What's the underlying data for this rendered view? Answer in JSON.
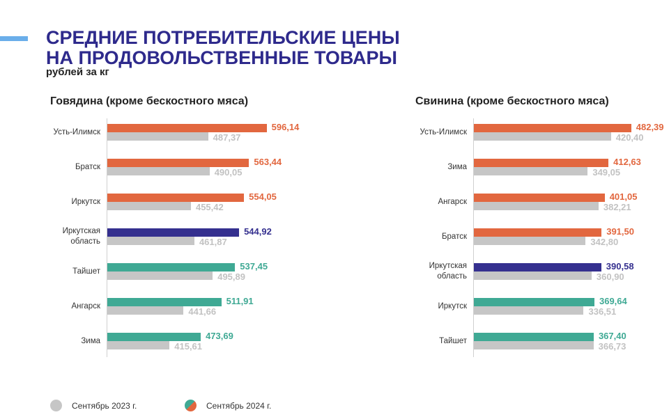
{
  "header": {
    "title_line1": "СРЕДНИЕ ПОТРЕБИТЕЛЬСКИЕ ЦЕНЫ",
    "title_line2": "НА ПРОДОВОЛЬСТВЕННЫЕ ТОВАРЫ",
    "units": "рублей за кг"
  },
  "colors": {
    "prev": "#c6c6c6",
    "high": "#e2673f",
    "region": "#35308f",
    "low": "#3fa994"
  },
  "legend": {
    "prev": "Сентябрь 2023 г.",
    "curr": "Сентябрь 2024 г."
  },
  "chart_data": [
    {
      "type": "bar",
      "orientation": "horizontal",
      "title": "Говядина (кроме бескостного мяса)",
      "xlim": [
        300,
        620
      ],
      "categories": [
        "Усть-Илимск",
        "Братск",
        "Иркутск",
        "Иркутская область",
        "Тайшет",
        "Ангарск",
        "Зима"
      ],
      "category_lines": [
        [
          "Усть-Илимск"
        ],
        [
          "Братск"
        ],
        [
          "Иркутск"
        ],
        [
          "Иркутская",
          "область"
        ],
        [
          "Тайшет"
        ],
        [
          "Ангарск"
        ],
        [
          "Зима"
        ]
      ],
      "series": [
        {
          "name": "Сентябрь 2024 г.",
          "values": [
            596.14,
            563.44,
            554.05,
            544.92,
            537.45,
            511.91,
            473.69
          ],
          "labels": [
            "596,14",
            "563,44",
            "554,05",
            "544,92",
            "537,45",
            "511,91",
            "473,69"
          ],
          "groups": [
            "high",
            "high",
            "high",
            "region",
            "low",
            "low",
            "low"
          ]
        },
        {
          "name": "Сентябрь 2023 г.",
          "values": [
            487.37,
            490.05,
            455.42,
            461.87,
            495.89,
            441.66,
            415.61
          ],
          "labels": [
            "487,37",
            "490,05",
            "455,42",
            "461,87",
            "495,89",
            "441,66",
            "415,61"
          ]
        }
      ]
    },
    {
      "type": "bar",
      "orientation": "horizontal",
      "title": "Свинина (кроме бескостного мяса)",
      "xlim": [
        0,
        530
      ],
      "categories": [
        "Усть-Илимск",
        "Зима",
        "Ангарск",
        "Братск",
        "Иркутская область",
        "Иркутск",
        "Тайшет"
      ],
      "category_lines": [
        [
          "Усть-Илимск"
        ],
        [
          "Зима"
        ],
        [
          "Ангарск"
        ],
        [
          "Братск"
        ],
        [
          "Иркутская",
          "область"
        ],
        [
          "Иркутск"
        ],
        [
          "Тайшет"
        ]
      ],
      "series": [
        {
          "name": "Сентябрь 2024 г.",
          "values": [
            482.39,
            412.63,
            401.05,
            391.5,
            390.58,
            369.64,
            367.4
          ],
          "labels": [
            "482,39",
            "412,63",
            "401,05",
            "391,50",
            "390,58",
            "369,64",
            "367,40"
          ],
          "groups": [
            "high",
            "high",
            "high",
            "high",
            "region",
            "low",
            "low"
          ]
        },
        {
          "name": "Сентябрь 2023 г.",
          "values": [
            420.4,
            349.05,
            382.21,
            342.8,
            360.9,
            336.51,
            366.73
          ],
          "labels": [
            "420,40",
            "349,05",
            "382,21",
            "342,80",
            "360,90",
            "336,51",
            "366,73"
          ]
        }
      ]
    }
  ]
}
